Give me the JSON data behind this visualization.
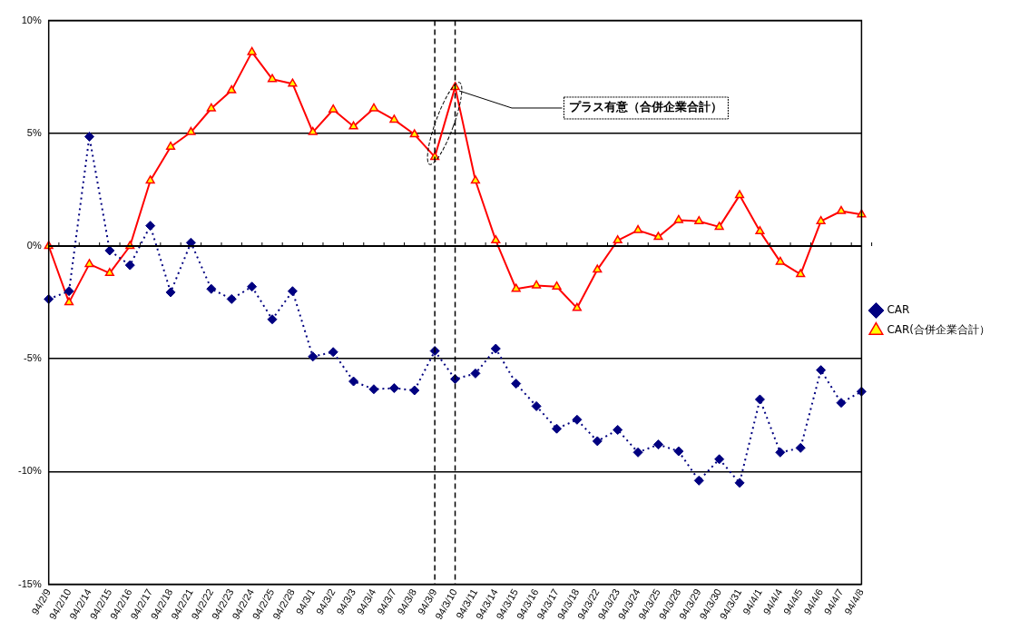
{
  "chart_data": {
    "type": "line",
    "categories": [
      "94/2/9",
      "94/2/10",
      "94/2/14",
      "94/2/15",
      "94/2/16",
      "94/2/17",
      "94/2/18",
      "94/2/21",
      "94/2/22",
      "94/2/23",
      "94/2/24",
      "94/2/25",
      "94/2/28",
      "94/3/1",
      "94/3/2",
      "94/3/3",
      "94/3/4",
      "94/3/7",
      "94/3/8",
      "94/3/9",
      "94/3/10",
      "94/3/11",
      "94/3/14",
      "94/3/15",
      "94/3/16",
      "94/3/17",
      "94/3/18",
      "94/3/22",
      "94/3/23",
      "94/3/24",
      "94/3/25",
      "94/3/28",
      "94/3/29",
      "94/3/30",
      "94/3/31",
      "94/4/1",
      "94/4/4",
      "94/4/5",
      "94/4/6",
      "94/4/7",
      "94/4/8"
    ],
    "series": [
      {
        "name": "CAR",
        "color": "#000080",
        "marker": "diamond",
        "line_style": "dotted",
        "values": [
          -2.35,
          -2.0,
          4.85,
          -0.2,
          -0.85,
          0.9,
          -2.05,
          0.15,
          -1.9,
          -2.35,
          -1.8,
          -3.25,
          -2.0,
          -4.9,
          -4.7,
          -6.0,
          -6.35,
          -6.3,
          -6.4,
          -4.65,
          -5.9,
          -5.65,
          -4.55,
          -6.1,
          -7.1,
          -8.1,
          -7.7,
          -8.65,
          -8.15,
          -9.15,
          -8.8,
          -9.1,
          -10.4,
          -9.45,
          -10.5,
          -6.8,
          -9.15,
          -8.95,
          -5.5,
          -6.95,
          -6.45
        ]
      },
      {
        "name": "CAR(合併企業合計）",
        "color": "#ff0000",
        "marker": "triangle",
        "line_style": "solid",
        "values": [
          0,
          -2.5,
          -0.8,
          -1.2,
          0,
          2.9,
          4.4,
          5.05,
          6.1,
          6.9,
          8.6,
          7.4,
          7.2,
          5.05,
          6.05,
          5.3,
          6.1,
          5.6,
          4.95,
          3.95,
          7.05,
          2.9,
          0.25,
          -1.9,
          -1.75,
          -1.8,
          -2.75,
          -1.05,
          0.25,
          0.7,
          0.4,
          1.15,
          1.1,
          0.85,
          2.25,
          0.65,
          -0.7,
          -1.25,
          1.1,
          1.55,
          1.4
        ]
      }
    ],
    "ylim": [
      -15,
      10
    ],
    "yticks": [
      {
        "value": 10,
        "label": "10%"
      },
      {
        "value": 5,
        "label": "5%"
      },
      {
        "value": 0,
        "label": "0%"
      },
      {
        "value": -5,
        "label": "-5%"
      },
      {
        "value": -10,
        "label": "-10%"
      },
      {
        "value": -15,
        "label": "-15%"
      }
    ],
    "grid": "y",
    "legend": "right",
    "ref_lines": [
      {
        "axis": "x",
        "value": "94/3/9",
        "line_style": "dashed",
        "color": "#000000"
      },
      {
        "axis": "x",
        "value": "94/3/10",
        "line_style": "dashed",
        "color": "#000000"
      }
    ],
    "annotations": [
      {
        "text": "プラス有意（合併企業合計）",
        "x": "94/3/10",
        "y": 7.05
      }
    ]
  }
}
